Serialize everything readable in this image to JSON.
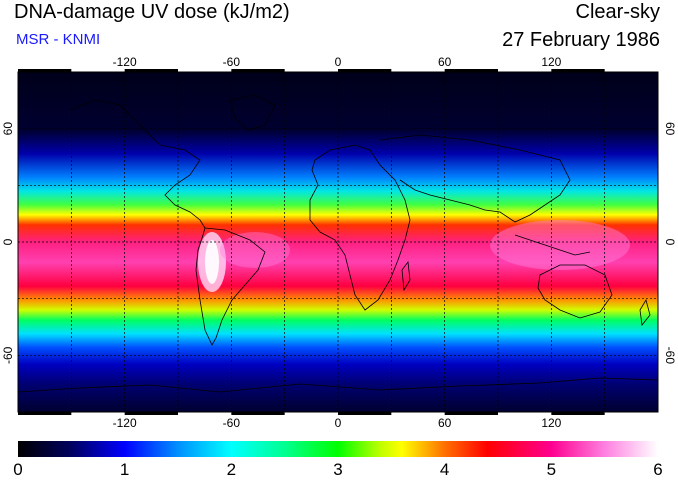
{
  "header": {
    "title": "DNA-damage UV dose (kJ/m2)",
    "subtitle": "MSR - KNMI",
    "sky_condition": "Clear-sky",
    "date": "27 February 1986"
  },
  "map": {
    "projection": "equirectangular",
    "longitude_ticks": [
      "-120",
      "-60",
      "0",
      "60",
      "120"
    ],
    "latitude_ticks": [
      "60",
      "0",
      "-60"
    ],
    "gridlines": "dashed, every 30 degrees",
    "coastlines": true
  },
  "colorbar": {
    "min": 0,
    "max": 6,
    "tick_labels": [
      "0",
      "1",
      "2",
      "3",
      "4",
      "5",
      "6"
    ],
    "stops": [
      {
        "value": 0.0,
        "color": "#000000"
      },
      {
        "value": 0.5,
        "color": "#000060"
      },
      {
        "value": 1.0,
        "color": "#0000ff"
      },
      {
        "value": 1.5,
        "color": "#0090ff"
      },
      {
        "value": 2.0,
        "color": "#00ffff"
      },
      {
        "value": 2.5,
        "color": "#00ff90"
      },
      {
        "value": 3.0,
        "color": "#00ff00"
      },
      {
        "value": 3.4,
        "color": "#c0ff00"
      },
      {
        "value": 3.6,
        "color": "#ffff00"
      },
      {
        "value": 4.0,
        "color": "#ff7000"
      },
      {
        "value": 4.4,
        "color": "#ff0000"
      },
      {
        "value": 5.0,
        "color": "#ff0090"
      },
      {
        "value": 5.5,
        "color": "#ff80e0"
      },
      {
        "value": 6.0,
        "color": "#ffffff"
      }
    ]
  }
}
